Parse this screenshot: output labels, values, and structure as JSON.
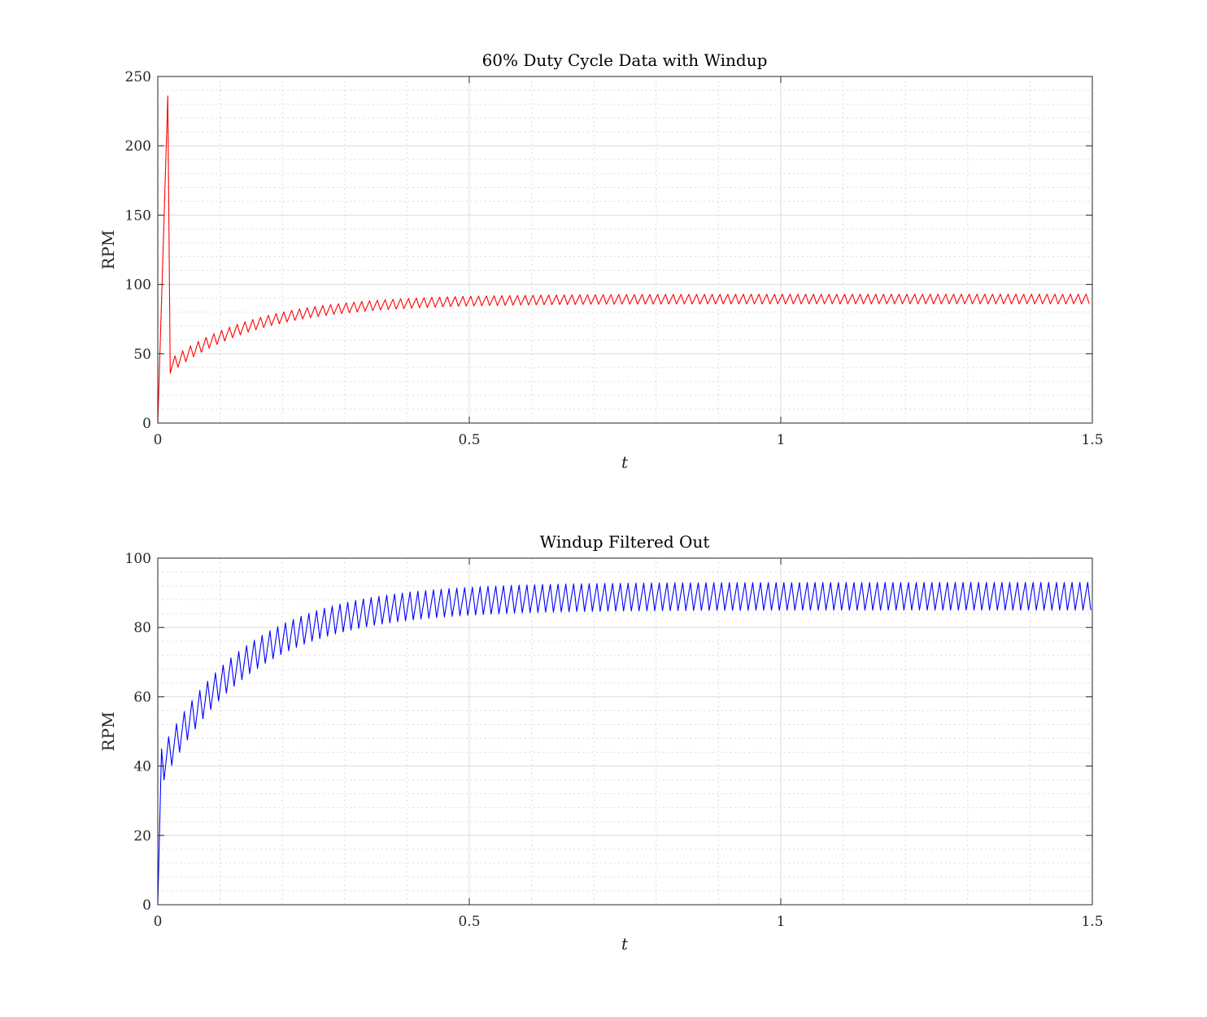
{
  "chart_data": [
    {
      "type": "line",
      "title": "60% Duty Cycle Data with Windup",
      "xlabel": "t",
      "ylabel": "RPM",
      "xlim": [
        0,
        1.5
      ],
      "ylim": [
        0,
        250
      ],
      "xticks": [
        0,
        0.5,
        1,
        1.5
      ],
      "xtick_labels": [
        "0",
        "0.5",
        "1",
        "1.5"
      ],
      "yticks": [
        0,
        50,
        100,
        150,
        200,
        250
      ],
      "ytick_labels": [
        "0",
        "50",
        "100",
        "150",
        "200",
        "250"
      ],
      "grid": true,
      "minor_grid": true,
      "color": "#ff0000",
      "series": [
        {
          "shape": "sawtooth approach with initial windup spike",
          "x_start": 0,
          "x_end": 1.5,
          "start_value": 0,
          "spike_x": 0.016,
          "spike_value": 236,
          "after_spike_x": 0.02,
          "after_spike_value": 36,
          "ripple_period": 0.0125,
          "initial_band": [
            36,
            46
          ],
          "steady_band": [
            86,
            93
          ],
          "time_constant": 0.14
        }
      ]
    },
    {
      "type": "line",
      "title": "Windup Filtered Out",
      "xlabel": "t",
      "ylabel": "RPM",
      "xlim": [
        0,
        1.5
      ],
      "ylim": [
        0,
        100
      ],
      "xticks": [
        0,
        0.5,
        1,
        1.5
      ],
      "xtick_labels": [
        "0",
        "0.5",
        "1",
        "1.5"
      ],
      "yticks": [
        0,
        20,
        40,
        60,
        80,
        100
      ],
      "ytick_labels": [
        "0",
        "20",
        "40",
        "60",
        "80",
        "100"
      ],
      "grid": true,
      "minor_grid": true,
      "color": "#0000ff",
      "series": [
        {
          "shape": "sawtooth approach with filtered start",
          "x_start": 0,
          "x_end": 1.5,
          "start_value": 0,
          "first_peak_x": 0.006,
          "first_peak_value": 45,
          "after_peak_x": 0.01,
          "after_peak_value": 36,
          "ripple_period": 0.0125,
          "initial_band": [
            36,
            46
          ],
          "steady_band": [
            85,
            93
          ],
          "time_constant": 0.14
        }
      ]
    }
  ]
}
